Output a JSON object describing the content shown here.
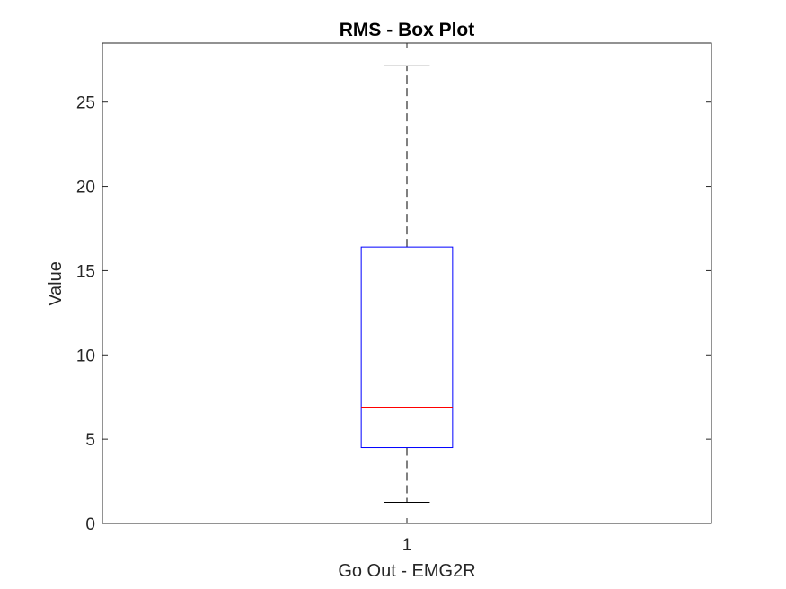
{
  "chart_data": {
    "type": "box",
    "title": "RMS - Box Plot",
    "xlabel": "Go Out - EMG2R",
    "ylabel": "Value",
    "categories": [
      "1"
    ],
    "ylim": [
      0,
      28.5
    ],
    "yticks": [
      0,
      5,
      10,
      15,
      20,
      25
    ],
    "xlim": [
      0.5,
      1.5
    ],
    "grid": false,
    "boxes": [
      {
        "category": "1",
        "whisker_low": 1.25,
        "q1": 4.5,
        "median": 6.9,
        "q3": 16.4,
        "whisker_high": 27.15
      }
    ],
    "colors": {
      "box": "#0000ff",
      "median": "#ff0000",
      "whisker": "#000000",
      "axes": "#262626"
    }
  }
}
